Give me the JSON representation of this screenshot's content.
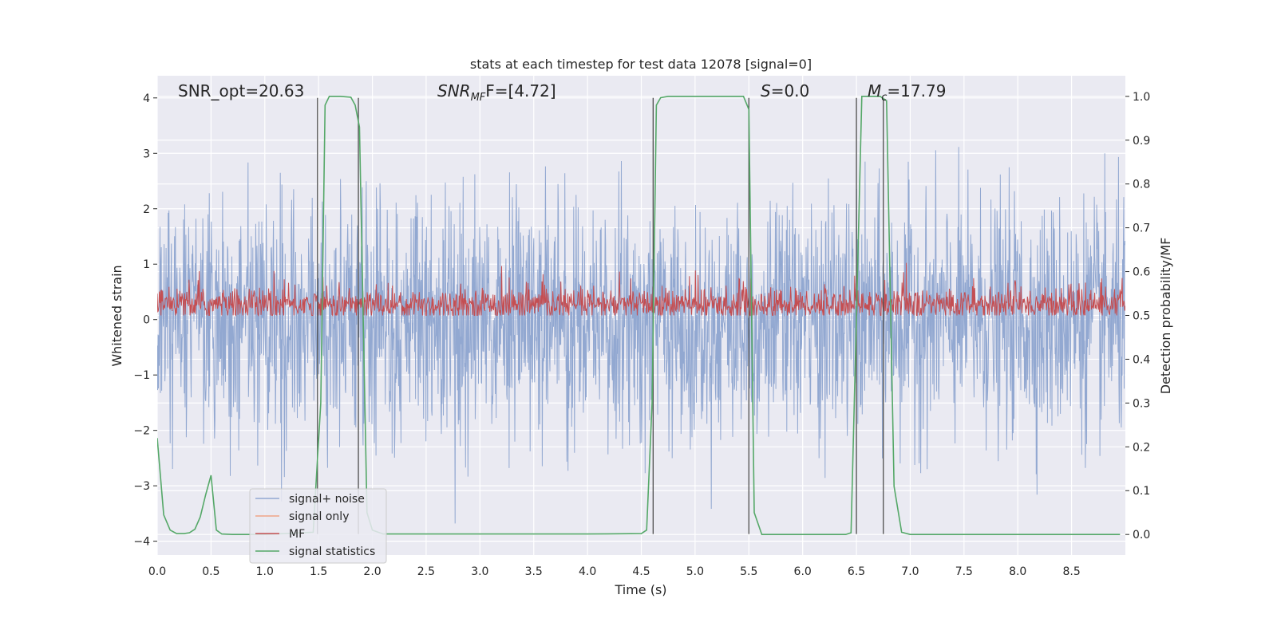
{
  "chart_data": {
    "type": "line",
    "title": "stats at each timestep for test data 12078 [signal=0]",
    "xlabel": "Time (s)",
    "ylabel_left": "Whitened strain",
    "ylabel_right": "Detection probability/MF",
    "xlim": [
      0.0,
      9.0
    ],
    "ylim_left": [
      -4.25,
      4.4
    ],
    "ylim_right": [
      -0.047,
      1.047
    ],
    "x_ticks": [
      "0.0",
      "0.5",
      "1.0",
      "1.5",
      "2.0",
      "2.5",
      "3.0",
      "3.5",
      "4.0",
      "4.5",
      "5.0",
      "5.5",
      "6.0",
      "6.5",
      "7.0",
      "7.5",
      "8.0",
      "8.5"
    ],
    "y_left_ticks": [
      "4",
      "3",
      "2",
      "1",
      "0",
      "−1",
      "−2",
      "−3",
      "−4"
    ],
    "y_right_ticks": [
      "1.0",
      "0.9",
      "0.8",
      "0.7",
      "0.6",
      "0.5",
      "0.4",
      "0.3",
      "0.2",
      "0.1",
      "0.0"
    ],
    "grid": true,
    "annotations": {
      "snr_opt": "SNR_opt=20.63",
      "snr_mf_main": "SNR",
      "snr_mf_sub": "MF",
      "snr_mf_rest": "F=[4.72]",
      "s_italic": "S",
      "s_rest": "=0.0",
      "mc_main": "M",
      "mc_sub": "c",
      "mc_rest": "=17.79"
    },
    "series": [
      {
        "name": "signal+ noise",
        "color": "#92a8d1",
        "band_approx": [
          -2.2,
          2.2
        ],
        "peak_max": 3.8,
        "peak_min": -3.8
      },
      {
        "name": "signal only",
        "color": "#f0a488",
        "values": []
      },
      {
        "name": "MF",
        "color": "#c44e52",
        "axis": "right",
        "band_approx": [
          0.5,
          0.55
        ],
        "peak_max": 0.62
      },
      {
        "name": "signal statistics",
        "color": "#55a868",
        "axis": "right",
        "x": [
          0.0,
          0.06,
          0.12,
          0.18,
          0.25,
          0.3,
          0.35,
          0.4,
          0.45,
          0.5,
          0.55,
          0.6,
          0.7,
          1.0,
          1.45,
          1.52,
          1.56,
          1.6,
          1.65,
          1.7,
          1.8,
          1.84,
          1.88,
          1.95,
          2.0,
          2.1,
          4.0,
          4.5,
          4.55,
          4.6,
          4.64,
          4.68,
          4.75,
          5.0,
          5.45,
          5.5,
          5.55,
          5.62,
          5.7,
          6.0,
          6.4,
          6.45,
          6.5,
          6.55,
          6.6,
          6.65,
          6.72,
          6.78,
          6.85,
          6.92,
          7.0,
          8.95
        ],
        "values": [
          0.22,
          0.045,
          0.01,
          0.002,
          0.002,
          0.004,
          0.012,
          0.04,
          0.09,
          0.135,
          0.01,
          0.001,
          0.0,
          0.0,
          0.005,
          0.3,
          0.98,
          1.0,
          1.0,
          1.0,
          0.998,
          0.98,
          0.93,
          0.05,
          0.01,
          0.001,
          0.001,
          0.002,
          0.01,
          0.3,
          0.98,
          0.997,
          1.0,
          1.0,
          1.0,
          0.97,
          0.05,
          0.0,
          0.0,
          0.0,
          0.0,
          0.004,
          0.5,
          1.0,
          1.0,
          1.0,
          1.0,
          0.99,
          0.11,
          0.005,
          0.0,
          0.0
        ]
      }
    ],
    "vertical_lines_x": [
      1.49,
      1.87,
      4.61,
      5.5,
      6.5,
      6.75
    ],
    "legend": {
      "placement": "lower-left",
      "items": [
        {
          "label": "signal+ noise",
          "color": "#92a8d1"
        },
        {
          "label": "signal only",
          "color": "#f0a488"
        },
        {
          "label": "MF",
          "color": "#c44e52"
        },
        {
          "label": "signal statistics",
          "color": "#55a868"
        }
      ]
    },
    "colors": {
      "plot_background": "#eaeaf2",
      "grid": "#ffffff",
      "vertical_line": "#4d4d4d"
    }
  }
}
